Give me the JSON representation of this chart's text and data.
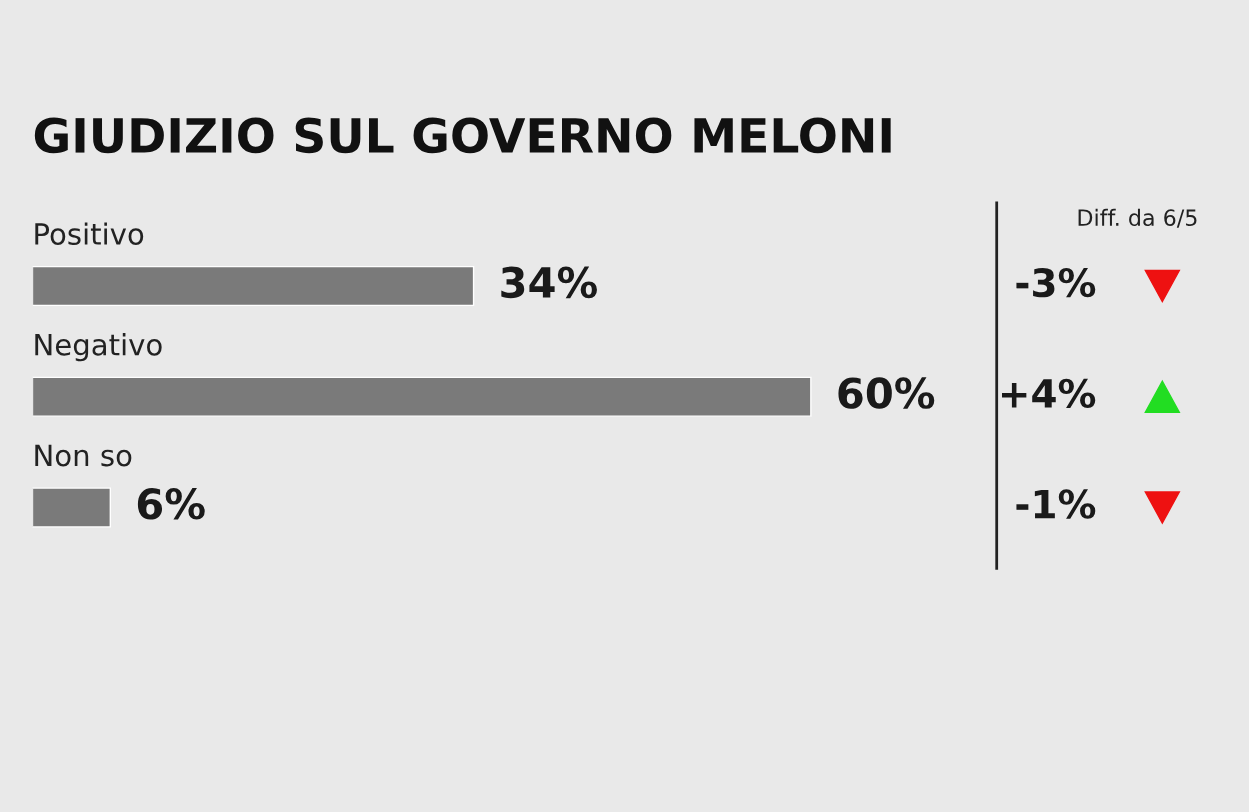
{
  "chart_data": [
    {
      "type": "bar",
      "title": "GIUDIZIO SUL GOVERNO MELONI",
      "orientation": "horizontal",
      "categories": [
        "Positivo",
        "Negativo",
        "Non so"
      ],
      "values": [
        34,
        60,
        6
      ],
      "color": "#7a7a7a",
      "value_labels": [
        "34%",
        "60%",
        "6%"
      ]
    },
    {
      "type": "other",
      "title": "Diff. da 6/5",
      "annotations": [
        "-3%",
        "+4%",
        "-1%"
      ]
    }
  ]
}
